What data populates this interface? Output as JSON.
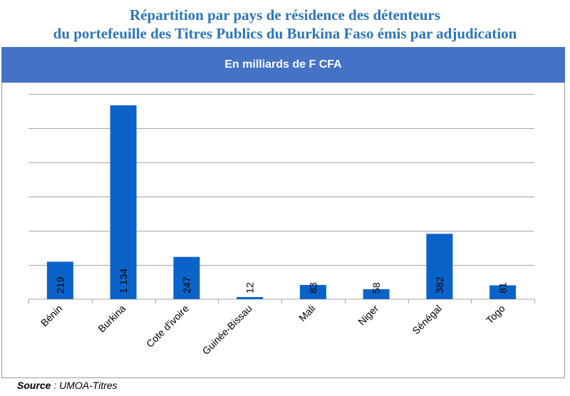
{
  "title_line1": "Répartition par pays de résidence des détenteurs",
  "title_line2": "du portefeuille des Titres Publics du Burkina Faso émis par adjudication",
  "banner": "En milliards de F CFA",
  "source_label": "Source",
  "source_text": " : UMOA-Titres",
  "colors": {
    "bar": "#0b63c9",
    "banner": "#4472c4",
    "title": "#2e75b6",
    "grid": "#a6a6a6"
  },
  "chart_data": {
    "type": "bar",
    "title": "En milliards de F CFA",
    "categories": [
      "Bénin",
      "Burkina",
      "Cote d'ivoire",
      "Guinée-Bissau",
      "Mali",
      "Niger",
      "Sénégal",
      "Togo"
    ],
    "values": [
      219,
      1134,
      247,
      12,
      83,
      58,
      382,
      81
    ],
    "value_labels": [
      "219",
      "1 134",
      "247",
      "12",
      "83",
      "58",
      "382",
      "81"
    ],
    "ylim": [
      0,
      1200
    ],
    "ytick_step": 200,
    "grid": true,
    "xlabel": "",
    "ylabel": ""
  }
}
